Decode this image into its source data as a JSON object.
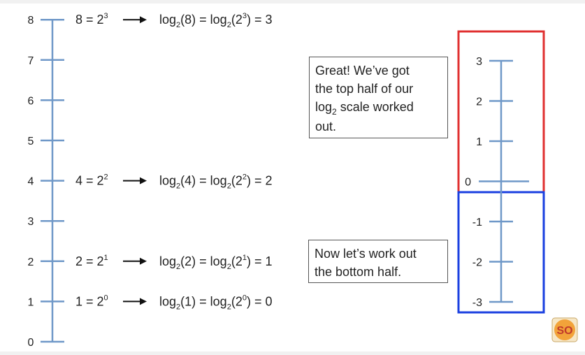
{
  "main_axis": {
    "ticks": [
      "0",
      "1",
      "2",
      "3",
      "4",
      "5",
      "6",
      "7",
      "8"
    ]
  },
  "equations": [
    {
      "value": "8",
      "power_base": "2",
      "exponent": "3",
      "log_arg": "8",
      "result": "3"
    },
    {
      "value": "4",
      "power_base": "2",
      "exponent": "2",
      "log_arg": "4",
      "result": "2"
    },
    {
      "value": "2",
      "power_base": "2",
      "exponent": "1",
      "log_arg": "2",
      "result": "1"
    },
    {
      "value": "1",
      "power_base": "2",
      "exponent": "0",
      "log_arg": "1",
      "result": "0"
    }
  ],
  "log_axis": {
    "top_ticks": [
      "3",
      "2",
      "1",
      "0"
    ],
    "bottom_ticks": [
      "-1",
      "-2",
      "-3"
    ],
    "top_box_color": "#e03030",
    "bottom_box_color": "#1a3fe0"
  },
  "note_top": {
    "line1": "Great! We’ve got",
    "line2": "the top half of our",
    "line3_pre": "log",
    "line3_sub": "2",
    "line3_post": " scale worked",
    "line4": "out."
  },
  "note_bottom": {
    "line1": "Now let’s work out",
    "line2": "the bottom half."
  },
  "logo": {
    "text": "SO"
  },
  "colors": {
    "axis": "#6f98c8",
    "text": "#222222"
  }
}
